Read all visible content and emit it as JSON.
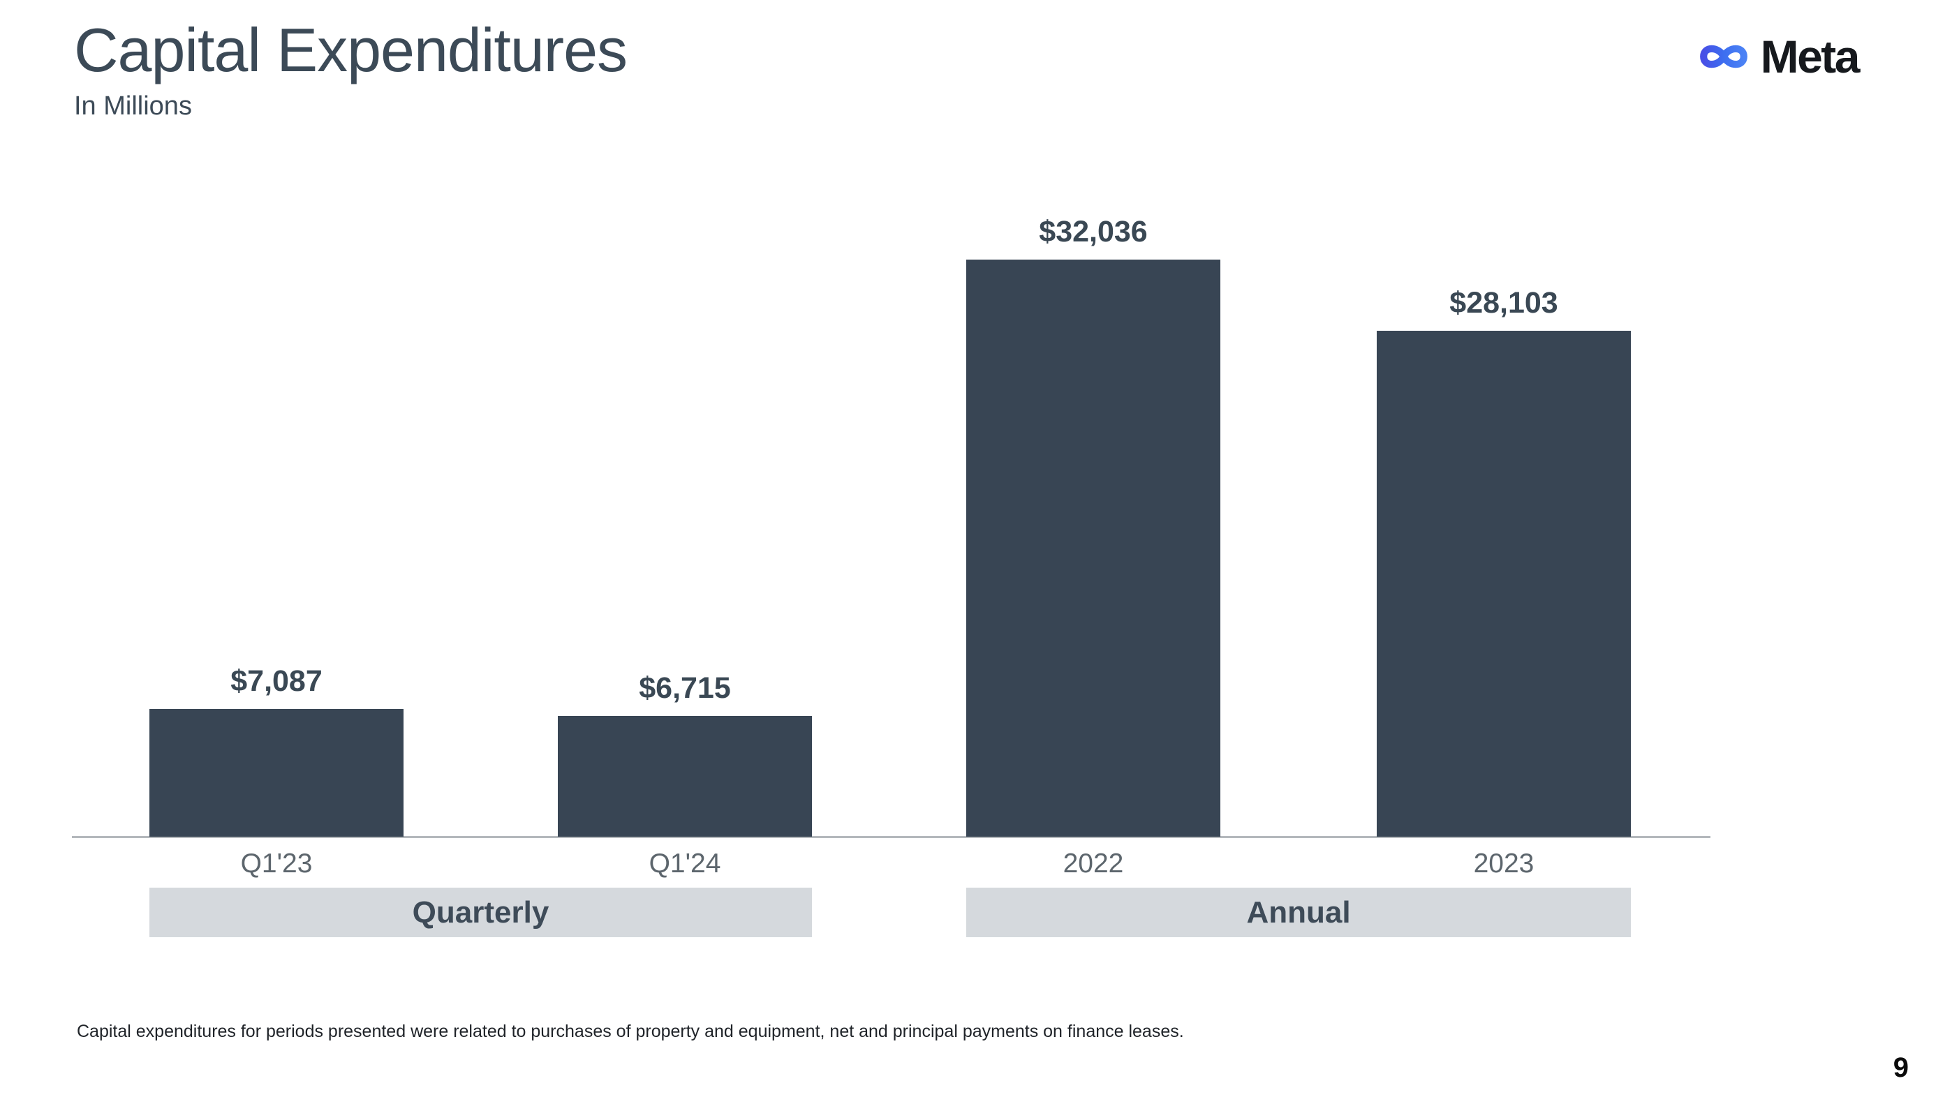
{
  "header": {
    "title": "Capital Expenditures",
    "subtitle": "In Millions",
    "brand": "Meta"
  },
  "chart_data": {
    "type": "bar",
    "categories": [
      "Q1'23",
      "Q1'24",
      "2022",
      "2023"
    ],
    "values": [
      7087,
      6715,
      32036,
      28103
    ],
    "value_labels": [
      "$7,087",
      "$6,715",
      "$32,036",
      "$28,103"
    ],
    "groups": [
      {
        "label": "Quarterly",
        "start": 0,
        "end": 1
      },
      {
        "label": "Annual",
        "start": 2,
        "end": 3
      }
    ],
    "title": "Capital Expenditures",
    "subtitle_unit": "In Millions",
    "ylim": [
      0,
      34000
    ],
    "grid": false,
    "legend": false,
    "bar_color": "#384554",
    "band_color": "#d5d9dd",
    "axis_line_color": "#b4b8bc"
  },
  "footnote": "Capital expenditures for periods presented were related to purchases of property and equipment, net and principal payments on finance leases.",
  "page_number": "9"
}
